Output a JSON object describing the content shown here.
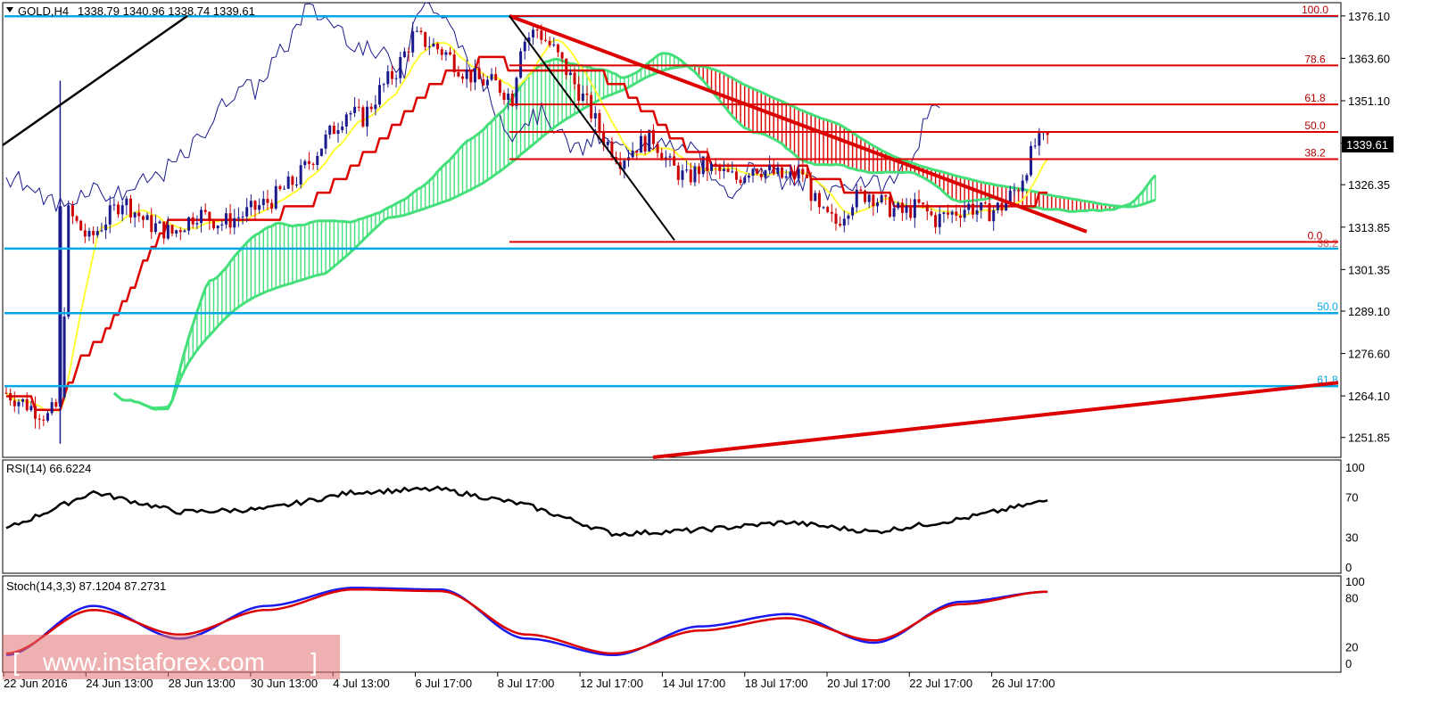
{
  "header": {
    "symbol": "GOLD,H4",
    "ohlc": "1338.79 1340.96 1338.74 1339.61",
    "current_price": "1339.61"
  },
  "colors": {
    "bull_candle": "#1a1a8c",
    "bear_candle": "#cc0000",
    "tenkan": "#ffff33",
    "kijun": "#dd0000",
    "chikou": "#1a1a8c",
    "cloud_bull": "#44e07a",
    "cloud_bear": "#dd0000",
    "support_line": "#00a8e8",
    "fib_line": "#dd0000",
    "fib_text": "#b00000",
    "retrace_text": "#00a8e8",
    "trend_red": "#dd0000",
    "trend_black": "#000000",
    "rsi_line": "#000000",
    "stoch_main": "#1a1aee",
    "stoch_signal": "#dd0000",
    "watermark_bg": "#e07070"
  },
  "price_axis": {
    "ticks": [
      "1376.10",
      "1363.60",
      "1351.10",
      "1338.60",
      "1326.35",
      "1313.85",
      "1301.35",
      "1289.10",
      "1276.60",
      "1264.10",
      "1251.85"
    ],
    "range": [
      1246,
      1380
    ]
  },
  "fib_levels": [
    {
      "label": "100.0",
      "price": 1376.1
    },
    {
      "label": "78.6",
      "price": 1361.5
    },
    {
      "label": "61.8",
      "price": 1350.0
    },
    {
      "label": "50.0",
      "price": 1341.9
    },
    {
      "label": "38.2",
      "price": 1333.9
    },
    {
      "label": "0.0",
      "price": 1309.5
    }
  ],
  "fib_overlap_label": "38.2",
  "retrace_levels": [
    {
      "label": "50.0",
      "price": 1288.5
    },
    {
      "label": "61.8",
      "price": 1267.0
    }
  ],
  "support_levels": [
    1376.0,
    1307.5,
    1288.5,
    1267.0
  ],
  "time_axis": [
    "22 Jun 2016",
    "24 Jun 13:00",
    "28 Jun 13:00",
    "30 Jun 13:00",
    "4 Jul 13:00",
    "6 Jul 17:00",
    "8 Jul 17:00",
    "12 Jul 17:00",
    "14 Jul 17:00",
    "18 Jul 17:00",
    "20 Jul 17:00",
    "22 Jul 17:00",
    "26 Jul 17:00"
  ],
  "rsi": {
    "title": "RSI(14) 66.6224",
    "ticks": [
      "100",
      "70",
      "30",
      "0"
    ],
    "value": 66.6224
  },
  "stoch": {
    "title": "Stoch(14,3,3) 87.1204 87.2731",
    "ticks": [
      "100",
      "80",
      "20",
      "0"
    ],
    "main": 87.1204,
    "signal": 87.2731
  },
  "watermark": "www.instaforex.com",
  "chart_data": {
    "type": "candlestick",
    "symbol": "GOLD",
    "timeframe": "H4",
    "ylim": [
      1246,
      1380
    ],
    "price_reading": [
      {
        "x": "22 Jun 2016",
        "close": 1266
      },
      {
        "x": "24 Jun 13:00",
        "close": 1318
      },
      {
        "x": "28 Jun 13:00",
        "close": 1316
      },
      {
        "x": "30 Jun 13:00",
        "close": 1320
      },
      {
        "x": "4 Jul 13:00",
        "close": 1355
      },
      {
        "x": "6 Jul 17:00",
        "close": 1365
      },
      {
        "x": "8 Jul 17:00",
        "close": 1367
      },
      {
        "x": "12 Jul 17:00",
        "close": 1338
      },
      {
        "x": "14 Jul 17:00",
        "close": 1330
      },
      {
        "x": "18 Jul 17:00",
        "close": 1331
      },
      {
        "x": "20 Jul 17:00",
        "close": 1318
      },
      {
        "x": "22 Jul 17:00",
        "close": 1318
      },
      {
        "x": "26 Jul 17:00",
        "close": 1339.61
      }
    ],
    "rsi_series": [
      38,
      75,
      55,
      58,
      75,
      78,
      62,
      33,
      37,
      45,
      35,
      48,
      66.6
    ],
    "stoch_main_series": [
      10,
      70,
      30,
      70,
      92,
      90,
      30,
      10,
      45,
      60,
      25,
      75,
      87.1
    ],
    "stoch_signal_series": [
      12,
      65,
      35,
      65,
      90,
      88,
      35,
      12,
      40,
      55,
      28,
      72,
      87.3
    ]
  }
}
